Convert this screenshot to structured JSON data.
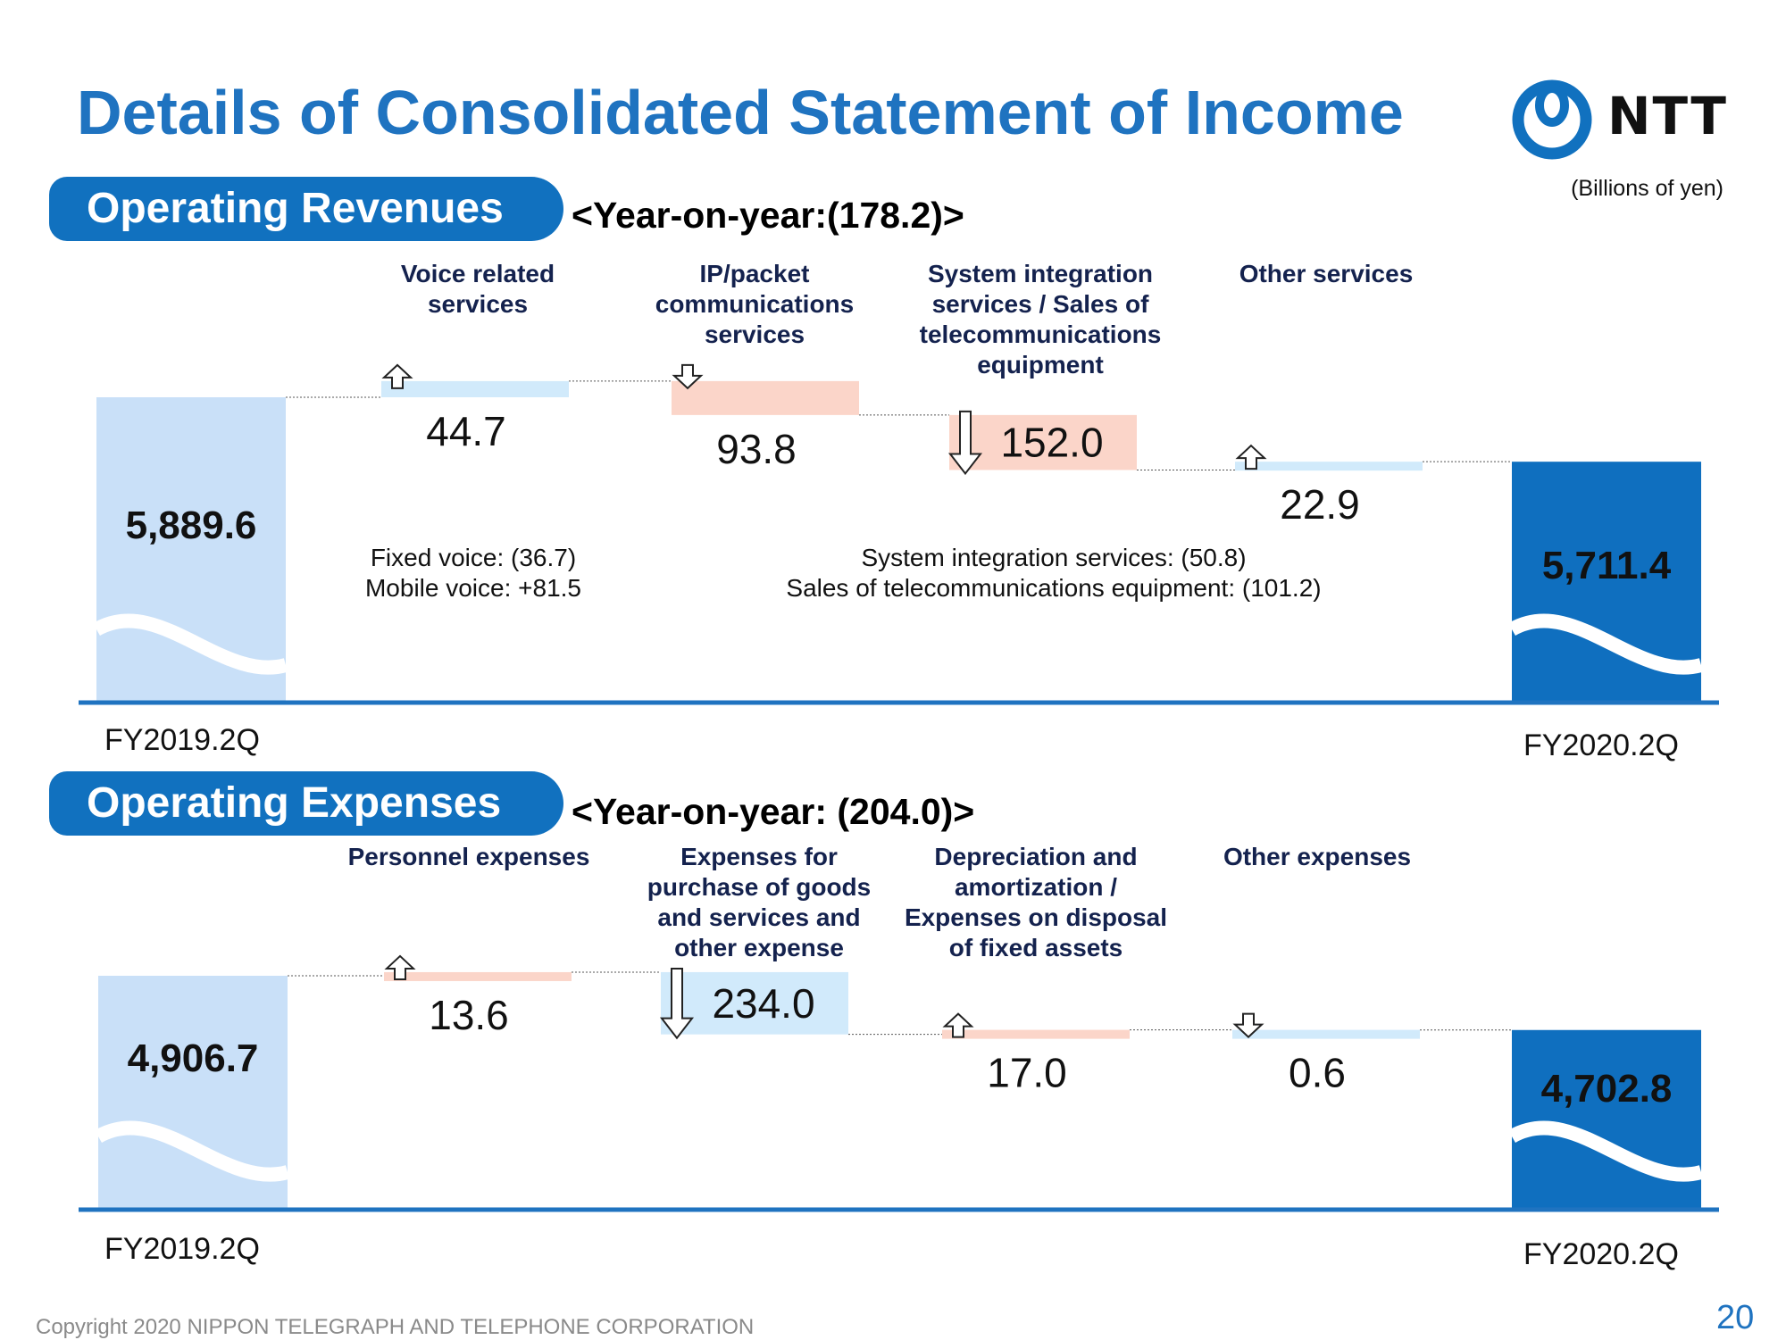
{
  "title": "Details of Consolidated Statement of Income",
  "logo_text": "NTT",
  "units": "(Billions of yen)",
  "copyright": "Copyright 2020 NIPPON TELEGRAPH AND TELEPHONE CORPORATION",
  "page_number": "20",
  "colors": {
    "title": "#1f73c0",
    "pill": "#1171bf",
    "start_bar": "#c9e0f8",
    "end_bar": "#0f6fbf",
    "increase_revenue": "#d1eafb",
    "decrease_revenue": "#fbd5c9",
    "increase_expense": "#fbd5c9",
    "decrease_expense": "#d1eafb",
    "axis": "#1f73c0"
  },
  "revenues": {
    "heading": "Operating Revenues",
    "yoy": "<Year-on-year:(178.2)>",
    "notes": {
      "voice": [
        "Fixed voice: (36.7)",
        "Mobile voice: +81.5"
      ],
      "system": [
        "System integration services: (50.8)",
        "Sales of telecommunications equipment: (101.2)"
      ]
    }
  },
  "expenses": {
    "heading": "Operating Expenses",
    "yoy": "<Year-on-year: (204.0)>"
  },
  "chart_data": [
    {
      "type": "waterfall",
      "title": "Operating Revenues",
      "subtitle": "<Year-on-year:(178.2)>",
      "start": {
        "label": "FY2019.2Q",
        "value": 5889.6,
        "value_label": "5,889.6"
      },
      "end": {
        "label": "FY2020.2Q",
        "value": 5711.4,
        "value_label": "5,711.4"
      },
      "steps": [
        {
          "category": "Voice related services",
          "change": 44.7,
          "value_label": "44.7",
          "direction": "up"
        },
        {
          "category": "IP/packet communications services",
          "change": -93.8,
          "value_label": "93.8",
          "direction": "down"
        },
        {
          "category": "System integration services / Sales of telecommunications equipment",
          "change": -152.0,
          "value_label": "152.0",
          "direction": "down"
        },
        {
          "category": "Other services",
          "change": 22.9,
          "value_label": "22.9",
          "direction": "up"
        }
      ]
    },
    {
      "type": "waterfall",
      "title": "Operating Expenses",
      "subtitle": "<Year-on-year: (204.0)>",
      "start": {
        "label": "FY2019.2Q",
        "value": 4906.7,
        "value_label": "4,906.7"
      },
      "end": {
        "label": "FY2020.2Q",
        "value": 4702.8,
        "value_label": "4,702.8"
      },
      "steps": [
        {
          "category": "Personnel expenses",
          "change": 13.6,
          "value_label": "13.6",
          "direction": "up"
        },
        {
          "category": "Expenses for purchase of goods and services and other expense",
          "change": -234.0,
          "value_label": "234.0",
          "direction": "down"
        },
        {
          "category": "Depreciation and amortization / Expenses on disposal of fixed assets",
          "change": 17.0,
          "value_label": "17.0",
          "direction": "up"
        },
        {
          "category": "Other expenses",
          "change": -0.6,
          "value_label": "0.6",
          "direction": "down"
        }
      ]
    }
  ]
}
